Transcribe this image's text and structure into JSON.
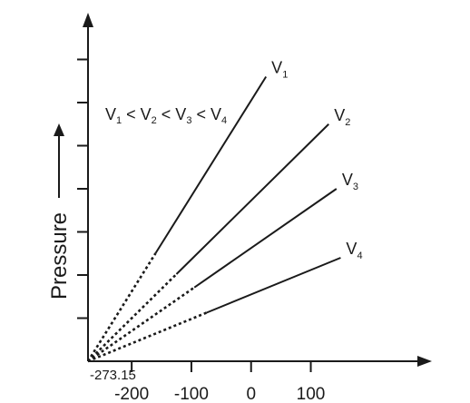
{
  "chart_data": {
    "type": "line",
    "title": "",
    "xlabel": "",
    "ylabel": "Pressure",
    "annotation": {
      "parts": [
        "V",
        "1",
        " < V",
        "2",
        " < V",
        "3",
        " < V",
        "4"
      ]
    },
    "origin_label": "-273.15",
    "x_ticks": [
      {
        "value": -200,
        "label": "-200"
      },
      {
        "value": -100,
        "label": "-100"
      },
      {
        "value": 0,
        "label": "0"
      },
      {
        "value": 100,
        "label": "100"
      }
    ],
    "xlim": [
      -273.15,
      155
    ],
    "ylim": [
      0,
      8
    ],
    "y_tick_values": [
      1,
      2,
      3,
      4,
      5,
      6,
      7
    ],
    "grid": false,
    "extrapolation_start_x": -273.15,
    "series": [
      {
        "name": "V",
        "sub": "1",
        "solid_from_x": -160,
        "end_x": 25,
        "end_y": 6.6
      },
      {
        "name": "V",
        "sub": "2",
        "solid_from_x": -125,
        "end_x": 130,
        "end_y": 5.5
      },
      {
        "name": "V",
        "sub": "3",
        "solid_from_x": -95,
        "end_x": 143,
        "end_y": 4.0
      },
      {
        "name": "V",
        "sub": "4",
        "solid_from_x": -75,
        "end_x": 150,
        "end_y": 2.4
      }
    ],
    "line_color": "#1a1a1a"
  }
}
